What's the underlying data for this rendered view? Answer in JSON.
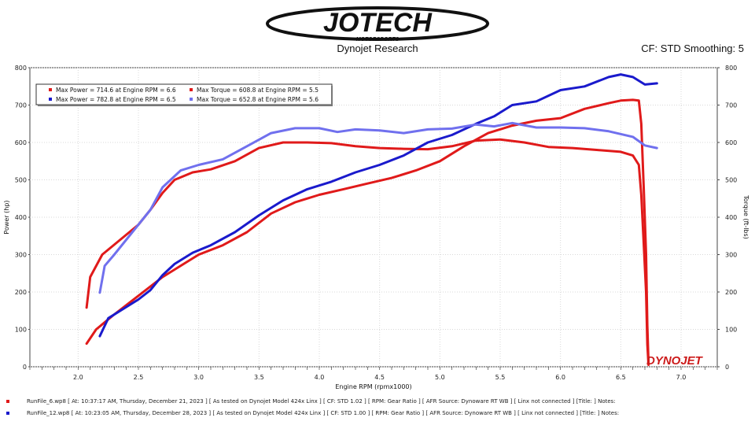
{
  "header": {
    "logo_text": "JOTECH",
    "logo_subtext": "MOTORSPORTS",
    "subtitle": "Dynojet Research",
    "cf_smoothing": "CF: STD Smoothing: 5",
    "colors": {
      "logo": "#111111"
    }
  },
  "footer": {
    "runs": [
      {
        "text": "RunFile_6.wp8  [  At:  10:37:17 AM, Thursday, December 21, 2023  ]  [  As tested on Dynojet Model 424x Linx  ]  [  CF: STD 1.02  ]  [  RPM: Gear Ratio  ]  [  AFR Source: Dynoware RT WB  ]  [  Linx not connected  ]  [Title:  ]    Notes:",
        "color": "#e01a1a"
      },
      {
        "text": "RunFile_12.wp8  [  At:  10:23:05 AM, Thursday, December 28, 2023  ]  [  As tested on Dynojet Model 424x Linx  ]  [  CF: STD 1.00  ]  [  RPM: Gear Ratio  ]  [  AFR Source: Dynoware RT WB  ]  [  Linx not connected  ]  [Title:  ]    Notes:",
        "color": "#1a1acc"
      }
    ]
  },
  "chart_data": {
    "type": "line",
    "xlabel": "Engine RPM (rpmx1000)",
    "ylabel": "Power (hp)",
    "ylabel_right": "Torque (ft-lbs)",
    "xlim": [
      1.6,
      7.3
    ],
    "ylim": [
      0,
      800
    ],
    "ylim_right": [
      0,
      800
    ],
    "x_ticks": [
      "2.0",
      "2.5",
      "3.0",
      "3.5",
      "4.0",
      "4.5",
      "5.0",
      "5.5",
      "6.0",
      "6.5",
      "7.0"
    ],
    "y_ticks": [
      "0",
      "100",
      "200",
      "300",
      "400",
      "500",
      "600",
      "700",
      "800"
    ],
    "grid": true,
    "legend_position": "top-left",
    "watermark": "DYNOJET",
    "legend": [
      {
        "text": "Max Power = 714.6 at Engine RPM = 6.6",
        "color": "#e01a1a"
      },
      {
        "text": "Max Torque = 608.8 at Engine RPM = 5.5",
        "color": "#e01a1a"
      },
      {
        "text": "Max Power = 782.8 at Engine RPM = 6.5",
        "color": "#1a1acc"
      },
      {
        "text": "Max Torque = 652.8 at Engine RPM = 5.6",
        "color": "#7070ee"
      }
    ],
    "series": [
      {
        "color": "#e01a1a",
        "points": [
          [
            2.07,
            62
          ],
          [
            2.15,
            100
          ],
          [
            2.3,
            140
          ],
          [
            2.5,
            190
          ],
          [
            2.7,
            240
          ],
          [
            2.9,
            280
          ],
          [
            3.0,
            300
          ],
          [
            3.2,
            325
          ],
          [
            3.4,
            360
          ],
          [
            3.6,
            410
          ],
          [
            3.8,
            440
          ],
          [
            4.0,
            460
          ],
          [
            4.2,
            475
          ],
          [
            4.4,
            490
          ],
          [
            4.6,
            505
          ],
          [
            4.8,
            525
          ],
          [
            5.0,
            550
          ],
          [
            5.2,
            590
          ],
          [
            5.4,
            625
          ],
          [
            5.6,
            645
          ],
          [
            5.8,
            658
          ],
          [
            6.0,
            665
          ],
          [
            6.2,
            690
          ],
          [
            6.4,
            705
          ],
          [
            6.5,
            712
          ],
          [
            6.6,
            714
          ],
          [
            6.65,
            712
          ],
          [
            6.67,
            650
          ],
          [
            6.69,
            480
          ],
          [
            6.71,
            300
          ],
          [
            6.72,
            110
          ],
          [
            6.73,
            10
          ]
        ]
      },
      {
        "color": "#e01a1a",
        "points": [
          [
            2.07,
            158
          ],
          [
            2.1,
            240
          ],
          [
            2.2,
            300
          ],
          [
            2.35,
            340
          ],
          [
            2.5,
            380
          ],
          [
            2.6,
            420
          ],
          [
            2.7,
            465
          ],
          [
            2.8,
            500
          ],
          [
            2.95,
            520
          ],
          [
            3.1,
            528
          ],
          [
            3.3,
            550
          ],
          [
            3.5,
            585
          ],
          [
            3.7,
            600
          ],
          [
            3.9,
            600
          ],
          [
            4.1,
            598
          ],
          [
            4.3,
            590
          ],
          [
            4.5,
            585
          ],
          [
            4.7,
            583
          ],
          [
            4.9,
            582
          ],
          [
            5.1,
            590
          ],
          [
            5.3,
            605
          ],
          [
            5.5,
            608
          ],
          [
            5.7,
            600
          ],
          [
            5.9,
            588
          ],
          [
            6.1,
            585
          ],
          [
            6.3,
            580
          ],
          [
            6.5,
            575
          ],
          [
            6.6,
            565
          ],
          [
            6.65,
            540
          ],
          [
            6.67,
            460
          ],
          [
            6.69,
            330
          ],
          [
            6.71,
            200
          ],
          [
            6.72,
            60
          ],
          [
            6.73,
            5
          ]
        ]
      },
      {
        "color": "#1a1acc",
        "points": [
          [
            2.18,
            82
          ],
          [
            2.25,
            130
          ],
          [
            2.4,
            160
          ],
          [
            2.5,
            180
          ],
          [
            2.6,
            205
          ],
          [
            2.7,
            245
          ],
          [
            2.8,
            275
          ],
          [
            2.95,
            305
          ],
          [
            3.1,
            325
          ],
          [
            3.3,
            360
          ],
          [
            3.5,
            405
          ],
          [
            3.7,
            445
          ],
          [
            3.9,
            475
          ],
          [
            4.1,
            495
          ],
          [
            4.3,
            520
          ],
          [
            4.5,
            540
          ],
          [
            4.7,
            565
          ],
          [
            4.9,
            600
          ],
          [
            5.1,
            620
          ],
          [
            5.3,
            650
          ],
          [
            5.45,
            670
          ],
          [
            5.6,
            700
          ],
          [
            5.8,
            710
          ],
          [
            6.0,
            740
          ],
          [
            6.2,
            750
          ],
          [
            6.4,
            775
          ],
          [
            6.5,
            782
          ],
          [
            6.6,
            775
          ],
          [
            6.7,
            755
          ],
          [
            6.8,
            758
          ]
        ]
      },
      {
        "color": "#7070ee",
        "points": [
          [
            2.18,
            198
          ],
          [
            2.22,
            270
          ],
          [
            2.3,
            300
          ],
          [
            2.45,
            360
          ],
          [
            2.6,
            420
          ],
          [
            2.7,
            480
          ],
          [
            2.85,
            525
          ],
          [
            3.0,
            540
          ],
          [
            3.2,
            555
          ],
          [
            3.4,
            590
          ],
          [
            3.6,
            625
          ],
          [
            3.8,
            638
          ],
          [
            4.0,
            638
          ],
          [
            4.15,
            628
          ],
          [
            4.3,
            635
          ],
          [
            4.5,
            632
          ],
          [
            4.7,
            625
          ],
          [
            4.9,
            635
          ],
          [
            5.1,
            637
          ],
          [
            5.3,
            648
          ],
          [
            5.45,
            643
          ],
          [
            5.6,
            652
          ],
          [
            5.8,
            640
          ],
          [
            6.0,
            640
          ],
          [
            6.2,
            638
          ],
          [
            6.4,
            630
          ],
          [
            6.6,
            615
          ],
          [
            6.7,
            592
          ],
          [
            6.8,
            585
          ]
        ]
      }
    ]
  }
}
